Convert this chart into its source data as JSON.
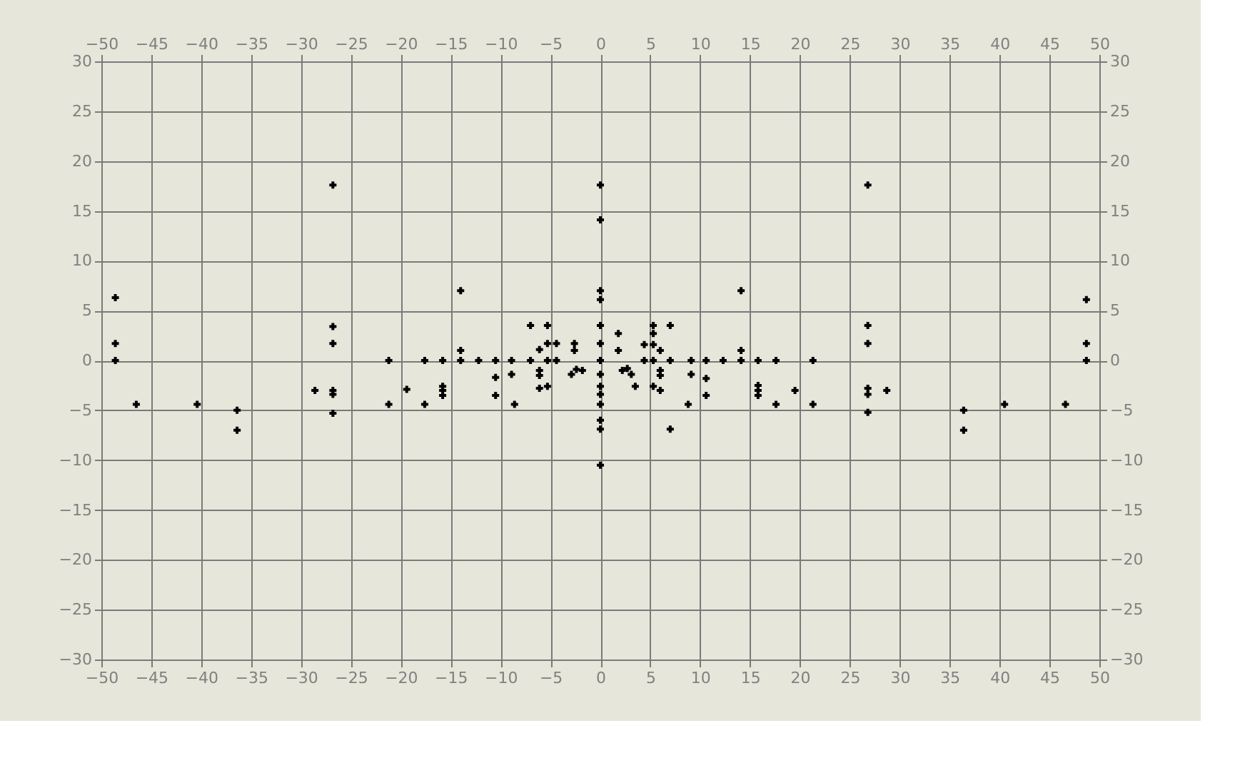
{
  "chart_data": {
    "type": "scatter",
    "x": [
      -48.6,
      -48.6,
      -48.6,
      -46.5,
      -40.4,
      -36.4,
      -36.4,
      -28.6,
      -26.8,
      -26.8,
      -26.8,
      -26.8,
      -26.8,
      -26.8,
      -21.2,
      -21.2,
      -19.4,
      -17.6,
      -17.6,
      -15.8,
      -15.8,
      -15.8,
      -15.8,
      -14,
      -14,
      -14,
      -12.2,
      -10.5,
      -10.5,
      -10.5,
      -8.9,
      -8.9,
      -8.6,
      -7,
      -7,
      -5.3,
      -5.3,
      -4.4,
      -5.3,
      -4.4,
      -6.1,
      -6.1,
      -6.1,
      -6.1,
      -5.3,
      -2.6,
      -2.6,
      -2.9,
      -2.4,
      -1.8,
      0,
      0,
      0,
      0,
      0,
      0,
      0,
      0,
      0,
      0,
      0,
      0,
      0,
      0,
      1.8,
      1.8,
      2.2,
      2.7,
      3.1,
      3.5,
      5.3,
      5.3,
      5.3,
      4.4,
      4.4,
      5.3,
      6.0,
      6.0,
      6.0,
      5.3,
      6.0,
      7.0,
      7.0,
      7.0,
      9.1,
      9.1,
      8.8,
      10.6,
      10.6,
      10.6,
      12.3,
      14.1,
      14.1,
      14.1,
      15.8,
      15.8,
      15.8,
      15.8,
      17.6,
      17.6,
      19.5,
      21.3,
      21.3,
      26.8,
      26.8,
      26.8,
      26.8,
      26.8,
      26.8,
      28.7,
      36.4,
      36.4,
      40.5,
      46.6,
      48.7,
      48.7,
      48.7
    ],
    "series": [
      {
        "color": "#000000",
        "values": [
          6.3,
          1.7,
          0,
          -4.4,
          -4.4,
          -5,
          -7,
          -3,
          17.6,
          3.4,
          1.7,
          -3,
          -3.4,
          -5.3,
          0,
          -4.4,
          -2.9,
          0,
          -4.4,
          0,
          -2.6,
          -3.0,
          -3.5,
          7,
          1,
          0,
          0,
          0,
          -1.7,
          -3.5,
          0,
          -1.4,
          -4.4,
          3.5,
          0,
          3.5,
          1.7,
          1.7,
          0,
          0,
          1.1,
          -1.0,
          -1.5,
          -2.8,
          -2.6,
          1.7,
          1.0,
          -1.4,
          -0.9,
          -1.0,
          17.6,
          14.1,
          7.0,
          6.1,
          3.5,
          1.7,
          0,
          -1.4,
          -2.6,
          -3.4,
          -4.4,
          -6.0,
          -6.9,
          -10.5,
          2.7,
          1.0,
          -1.0,
          -0.8,
          -1.4,
          -2.6,
          3.5,
          2.7,
          1.6,
          1.6,
          0,
          0,
          1.0,
          -1.0,
          -1.5,
          -2.6,
          -3.0,
          3.5,
          0,
          -6.9,
          0,
          -1.4,
          -4.4,
          0,
          -1.8,
          -3.5,
          0,
          7.0,
          1.0,
          0,
          0,
          -2.5,
          -3.0,
          -3.5,
          0,
          -4.4,
          -3.0,
          0,
          -4.4,
          17.6,
          3.5,
          1.7,
          -2.8,
          -3.4,
          -5.2,
          -3.0,
          -5.0,
          -7.0,
          -4.4,
          -4.4,
          6.1,
          1.7,
          0
        ]
      }
    ],
    "xlim": [
      -50,
      50
    ],
    "xticks": [
      -50,
      -45,
      -40,
      -35,
      -30,
      -25,
      -20,
      -15,
      -10,
      -5,
      0,
      5,
      10,
      15,
      20,
      25,
      30,
      35,
      40,
      45,
      50
    ],
    "x2lim": [
      -50,
      50
    ],
    "x2ticks": [
      -50,
      -45,
      -40,
      -35,
      -30,
      -25,
      -20,
      -15,
      -10,
      -5,
      0,
      5,
      10,
      15,
      20,
      25,
      30,
      35,
      40,
      45,
      50
    ],
    "ylim": [
      -30,
      30
    ],
    "yticks": [
      -30,
      -25,
      -20,
      -15,
      -10,
      -5,
      0,
      5,
      10,
      15,
      20,
      25,
      30
    ],
    "y2lim": [
      -30,
      30
    ],
    "y2ticks": [
      -30,
      -25,
      -20,
      -15,
      -10,
      -5,
      0,
      5,
      10,
      15,
      20,
      25,
      30
    ],
    "grid": true,
    "marker": "cross"
  }
}
